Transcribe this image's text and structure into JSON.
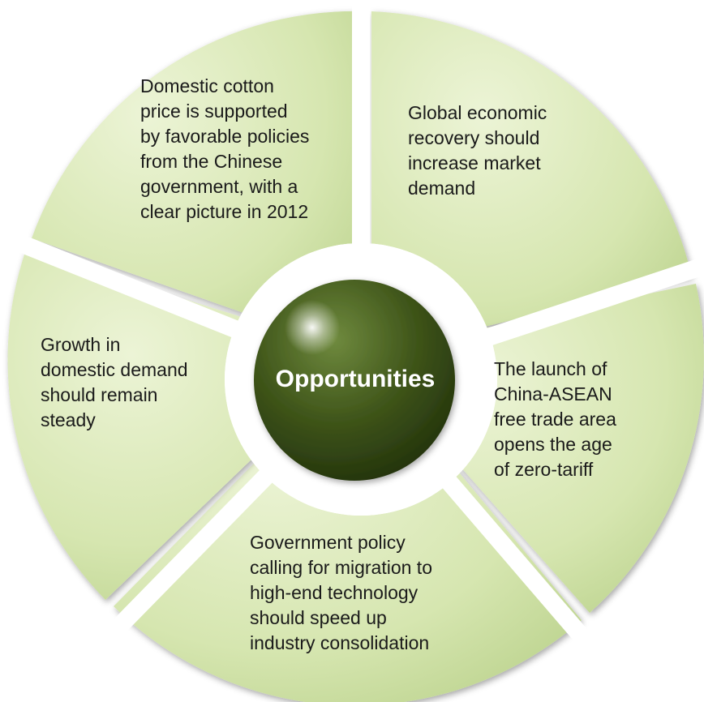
{
  "center": {
    "label": "Opportunities"
  },
  "segments": [
    {
      "id": "top-left",
      "lines": [
        "Domestic cotton",
        "price is supported",
        "by favorable policies",
        "from the Chinese",
        "government, with a",
        "clear picture in 2012"
      ]
    },
    {
      "id": "top-right",
      "lines": [
        "Global economic",
        "recovery should",
        "increase market",
        "demand"
      ]
    },
    {
      "id": "right",
      "lines": [
        "The launch of",
        "China-ASEAN",
        "free trade area",
        "opens  the age",
        "of zero-tariff"
      ]
    },
    {
      "id": "bottom",
      "lines": [
        "Government policy",
        "calling for migration to",
        "high-end technology",
        "should speed up",
        "industry consolidation"
      ]
    },
    {
      "id": "left",
      "lines": [
        "Growth in",
        "domestic demand",
        "should remain",
        "steady"
      ]
    }
  ],
  "colors": {
    "segment_fill_light": "#e4efcb",
    "segment_fill_dark": "#bdd58f",
    "segment_edge": "#a9bd7e",
    "center_light": "#6f8a3e",
    "center_dark": "#2c3f12"
  }
}
